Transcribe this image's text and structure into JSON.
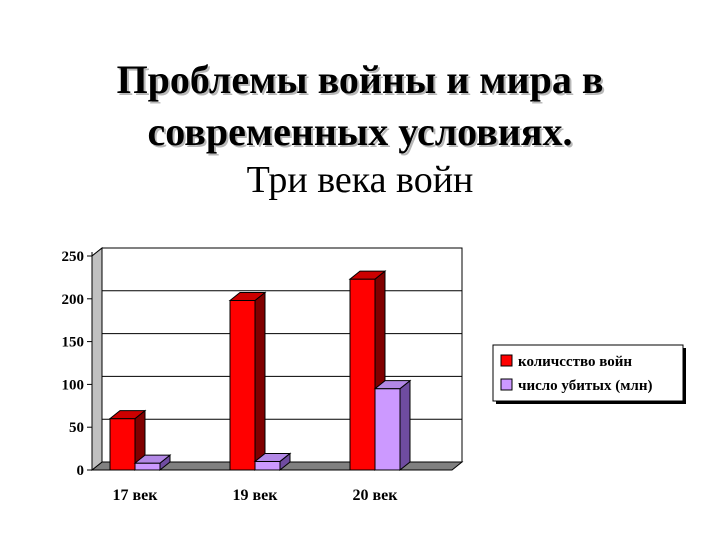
{
  "page": {
    "title_line1": "Проблемы войны и мира в",
    "title_line2": "современных условиях.",
    "subtitle": "Три века войн"
  },
  "chart_data": {
    "type": "bar",
    "categories": [
      "17 век",
      "19 век",
      "20 век"
    ],
    "series": [
      {
        "name": "количсство войн",
        "values": [
          60,
          198,
          223
        ],
        "color": "#ff0000",
        "side": "#800000",
        "top": "#cc0000"
      },
      {
        "name": "число убитых (млн)",
        "values": [
          8,
          10,
          95
        ],
        "color": "#cc99ff",
        "side": "#6f4ca0",
        "top": "#b388e6"
      }
    ],
    "yticks": [
      "0",
      "50",
      "100",
      "150",
      "200",
      "250"
    ],
    "ylim": [
      0,
      250
    ],
    "grid": true,
    "legend_position": "right"
  }
}
